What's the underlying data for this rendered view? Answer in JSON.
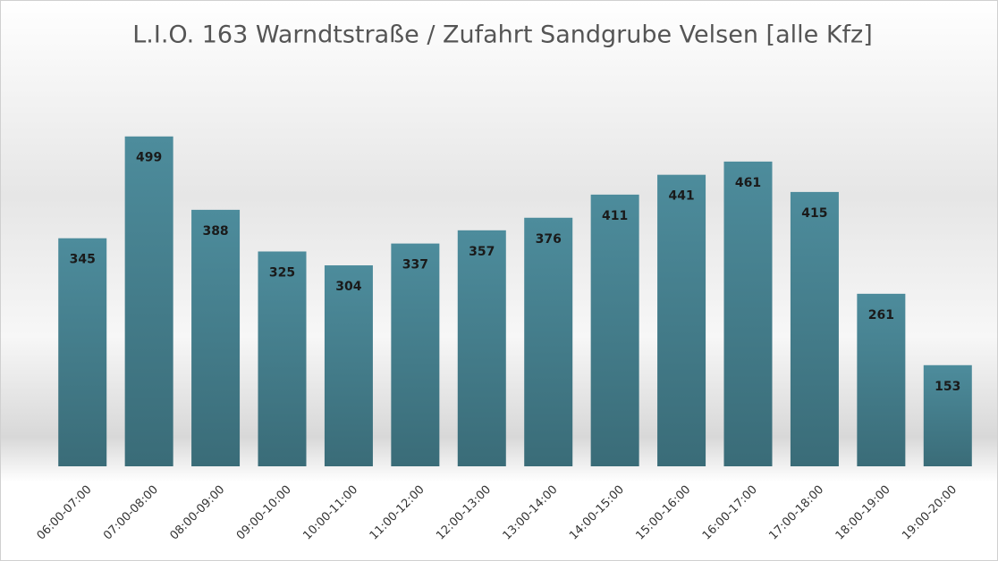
{
  "chart_data": {
    "type": "bar",
    "title": "L.I.O. 163 Warndtstraße / Zufahrt Sandgrube Velsen [alle Kfz]",
    "categories": [
      "06:00-07:00",
      "07:00-08:00",
      "08:00-09:00",
      "09:00-10:00",
      "10:00-11:00",
      "11:00-12:00",
      "12:00-13:00",
      "13:00-14:00",
      "14:00-15:00",
      "15:00-16:00",
      "16:00-17:00",
      "17:00-18:00",
      "18:00-19:00",
      "19:00-20:00"
    ],
    "values": [
      345,
      499,
      388,
      325,
      304,
      337,
      357,
      376,
      411,
      441,
      461,
      415,
      261,
      153
    ],
    "color": "#467f8e",
    "ylim": [
      0,
      500
    ]
  }
}
